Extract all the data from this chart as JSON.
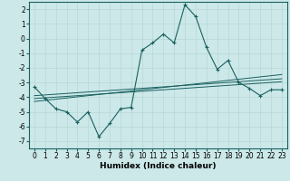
{
  "xlabel": "Humidex (Indice chaleur)",
  "ylabel": "",
  "background_color": "#cce8e8",
  "grid_color": "#b8d8d8",
  "line_color": "#1a6060",
  "x_values": [
    0,
    1,
    2,
    3,
    4,
    5,
    6,
    7,
    8,
    9,
    10,
    11,
    12,
    13,
    14,
    15,
    16,
    17,
    18,
    19,
    20,
    21,
    22,
    23
  ],
  "main_y": [
    -3.3,
    -4.1,
    -4.8,
    -5.0,
    -5.7,
    -5.0,
    -6.7,
    -5.8,
    -4.8,
    -4.7,
    -0.8,
    -0.3,
    0.3,
    -0.3,
    2.3,
    1.5,
    -0.6,
    -2.1,
    -1.5,
    -3.0,
    -3.4,
    -3.9,
    -3.5,
    -3.5
  ],
  "reg_y1": [
    -4.1,
    -4.05,
    -4.0,
    -3.95,
    -3.9,
    -3.85,
    -3.8,
    -3.75,
    -3.7,
    -3.65,
    -3.6,
    -3.55,
    -3.5,
    -3.45,
    -3.4,
    -3.35,
    -3.3,
    -3.25,
    -3.2,
    -3.15,
    -3.1,
    -3.05,
    -3.0,
    -2.95
  ],
  "reg_y2": [
    -4.3,
    -4.22,
    -4.14,
    -4.06,
    -3.98,
    -3.9,
    -3.82,
    -3.74,
    -3.66,
    -3.58,
    -3.5,
    -3.42,
    -3.34,
    -3.26,
    -3.18,
    -3.1,
    -3.02,
    -2.94,
    -2.86,
    -2.78,
    -2.7,
    -2.62,
    -2.54,
    -2.46
  ],
  "reg_y3": [
    -3.9,
    -3.85,
    -3.8,
    -3.75,
    -3.7,
    -3.65,
    -3.6,
    -3.55,
    -3.5,
    -3.45,
    -3.4,
    -3.35,
    -3.3,
    -3.25,
    -3.2,
    -3.15,
    -3.1,
    -3.05,
    -3.0,
    -2.95,
    -2.9,
    -2.85,
    -2.8,
    -2.75
  ],
  "ylim": [
    -7.5,
    2.5
  ],
  "xlim": [
    -0.5,
    23.5
  ],
  "yticks": [
    -7,
    -6,
    -5,
    -4,
    -3,
    -2,
    -1,
    0,
    1,
    2
  ],
  "xticks": [
    0,
    1,
    2,
    3,
    4,
    5,
    6,
    7,
    8,
    9,
    10,
    11,
    12,
    13,
    14,
    15,
    16,
    17,
    18,
    19,
    20,
    21,
    22,
    23
  ],
  "tick_fontsize": 5.5,
  "xlabel_fontsize": 6.5
}
